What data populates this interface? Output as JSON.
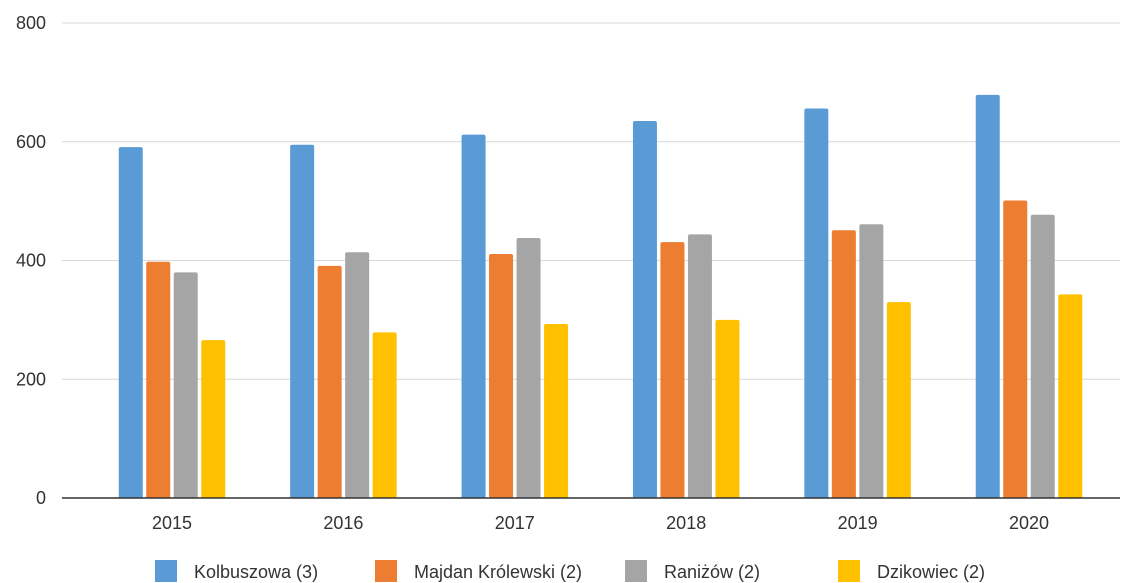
{
  "chart_data": {
    "type": "bar",
    "categories": [
      "2015",
      "2016",
      "2017",
      "2018",
      "2019",
      "2020"
    ],
    "series": [
      {
        "name": "Kolbuszowa (3)",
        "color": "#5b9bd5",
        "values": [
          591,
          595,
          612,
          635,
          656,
          679
        ]
      },
      {
        "name": "Majdan Królewski (2)",
        "color": "#ed7d31",
        "values": [
          398,
          391,
          411,
          431,
          451,
          501
        ]
      },
      {
        "name": "Raniżów (2)",
        "color": "#a5a5a5",
        "values": [
          380,
          414,
          438,
          444,
          461,
          477
        ]
      },
      {
        "name": "Dzikowiec (2)",
        "color": "#ffc000",
        "values": [
          266,
          279,
          293,
          300,
          330,
          343
        ]
      }
    ],
    "y_ticks": [
      "0",
      "200",
      "400",
      "600",
      "800"
    ],
    "ylim": [
      0,
      800
    ],
    "grid": true,
    "legend_position": "bottom",
    "title": "",
    "xlabel": "",
    "ylabel": ""
  }
}
